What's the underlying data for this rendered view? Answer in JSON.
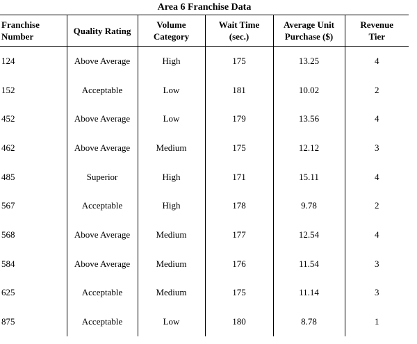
{
  "title": "Area 6 Franchise Data",
  "headers": [
    [
      "Franchise",
      "Number"
    ],
    [
      "Quality Rating"
    ],
    [
      "Volume",
      "Category"
    ],
    [
      "Wait Time",
      "(sec.)"
    ],
    [
      "Average Unit",
      "Purchase ($)"
    ],
    [
      "Revenue",
      "Tier"
    ]
  ],
  "rows": [
    [
      "124",
      "Above Average",
      "High",
      "175",
      "13.25",
      "4"
    ],
    [
      "152",
      "Acceptable",
      "Low",
      "181",
      "10.02",
      "2"
    ],
    [
      "452",
      "Above Average",
      "Low",
      "179",
      "13.56",
      "4"
    ],
    [
      "462",
      "Above Average",
      "Medium",
      "175",
      "12.12",
      "3"
    ],
    [
      "485",
      "Superior",
      "High",
      "171",
      "15.11",
      "4"
    ],
    [
      "567",
      "Acceptable",
      "High",
      "178",
      "9.78",
      "2"
    ],
    [
      "568",
      "Above Average",
      "Medium",
      "177",
      "12.54",
      "4"
    ],
    [
      "584",
      "Above Average",
      "Medium",
      "176",
      "11.54",
      "3"
    ],
    [
      "625",
      "Acceptable",
      "Medium",
      "175",
      "11.14",
      "3"
    ],
    [
      "875",
      "Acceptable",
      "Low",
      "180",
      "8.78",
      "1"
    ]
  ]
}
